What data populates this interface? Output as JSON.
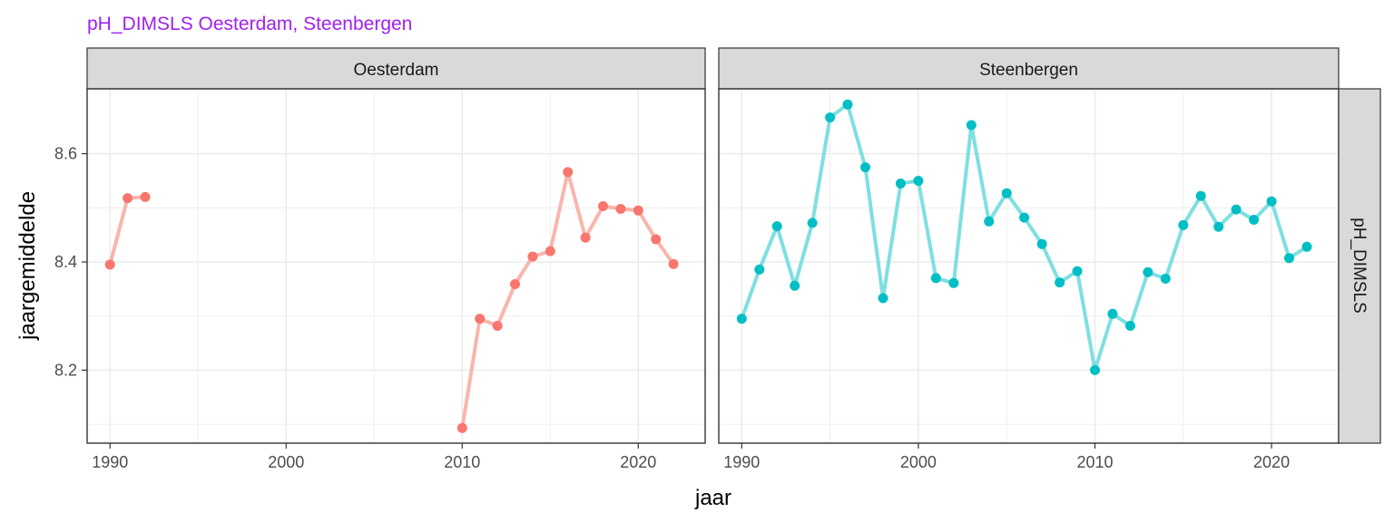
{
  "title": "pH_DIMSLS Oesterdam, Steenbergen",
  "colors": {
    "title": "#a020f0",
    "strip_fill": "#d9d9d9",
    "strip_border": "#333333",
    "grid": "#ebebeb",
    "panel_border": "#333333",
    "oesterdam_point": "#f8766d",
    "oesterdam_line": "#f9b5ad",
    "steenbergen_point": "#00bfc4",
    "steenbergen_line": "#7fdfe1"
  },
  "chart_data": {
    "type": "line",
    "title": "pH_DIMSLS Oesterdam, Steenbergen",
    "xlabel": "jaar",
    "ylabel": "jaargemiddelde",
    "row_strip": "pH_DIMSLS",
    "xlim": [
      1988.7,
      2023.8
    ],
    "ylim": [
      8.065,
      8.72
    ],
    "x_ticks": [
      1990,
      2000,
      2010,
      2020
    ],
    "y_ticks": [
      8.2,
      8.4,
      8.6
    ],
    "y_tick_labels": [
      "8.2",
      "8.4",
      "8.6"
    ],
    "grid": true,
    "legend": "none",
    "panels": [
      {
        "name": "Oesterdam",
        "segments": [
          [
            [
              1990,
              8.395
            ],
            [
              1991,
              8.518
            ],
            [
              1992,
              8.52
            ]
          ],
          [
            [
              2010,
              8.093
            ],
            [
              2011,
              8.295
            ],
            [
              2012,
              8.282
            ],
            [
              2013,
              8.359
            ],
            [
              2014,
              8.41
            ],
            [
              2015,
              8.42
            ],
            [
              2016,
              8.566
            ],
            [
              2017,
              8.445
            ],
            [
              2018,
              8.503
            ],
            [
              2019,
              8.498
            ],
            [
              2020,
              8.495
            ],
            [
              2021,
              8.442
            ],
            [
              2022,
              8.396
            ]
          ]
        ]
      },
      {
        "name": "Steenbergen",
        "segments": [
          [
            [
              1990,
              8.295
            ],
            [
              1991,
              8.386
            ],
            [
              1992,
              8.466
            ],
            [
              1993,
              8.356
            ],
            [
              1994,
              8.472
            ],
            [
              1995,
              8.667
            ],
            [
              1996,
              8.691
            ],
            [
              1997,
              8.575
            ],
            [
              1998,
              8.333
            ],
            [
              1999,
              8.545
            ],
            [
              2000,
              8.55
            ],
            [
              2001,
              8.37
            ],
            [
              2002,
              8.361
            ],
            [
              2003,
              8.653
            ],
            [
              2004,
              8.475
            ],
            [
              2005,
              8.527
            ],
            [
              2006,
              8.482
            ],
            [
              2007,
              8.433
            ],
            [
              2008,
              8.362
            ],
            [
              2009,
              8.383
            ],
            [
              2010,
              8.2
            ],
            [
              2011,
              8.304
            ],
            [
              2012,
              8.282
            ],
            [
              2013,
              8.381
            ],
            [
              2014,
              8.369
            ],
            [
              2015,
              8.468
            ],
            [
              2016,
              8.522
            ],
            [
              2017,
              8.465
            ],
            [
              2018,
              8.497
            ],
            [
              2019,
              8.478
            ],
            [
              2020,
              8.512
            ],
            [
              2021,
              8.407
            ],
            [
              2022,
              8.428
            ]
          ]
        ]
      }
    ]
  }
}
